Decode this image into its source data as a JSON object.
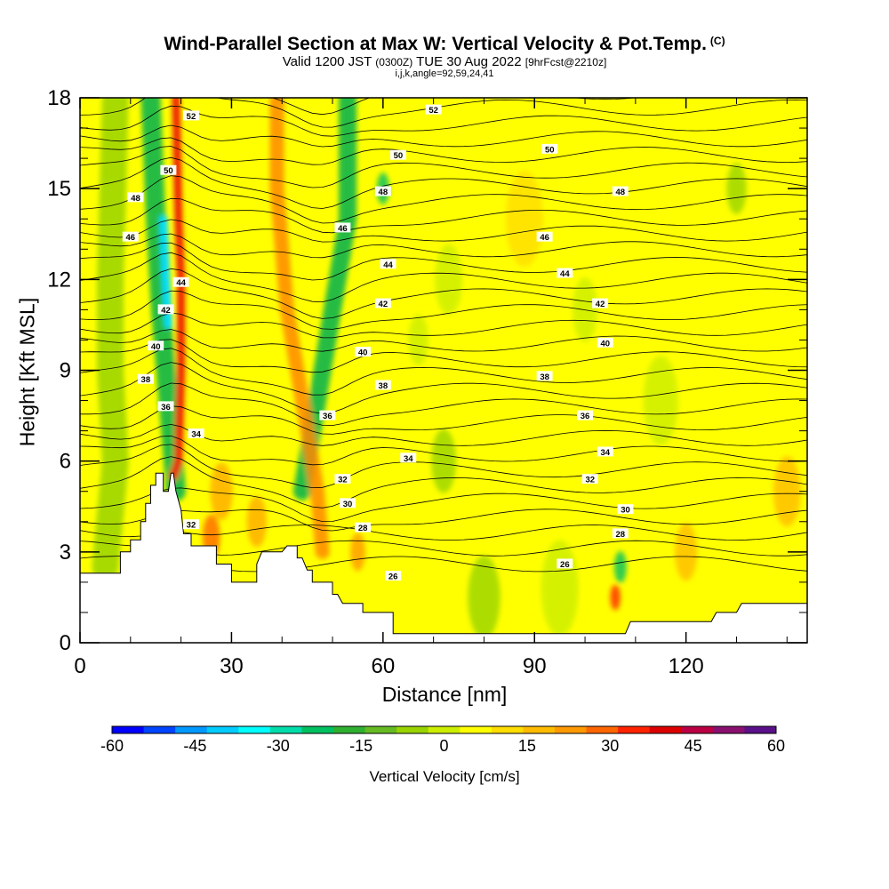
{
  "title": {
    "main": "Wind-Parallel Section at Max W: Vertical Velocity & Pot.Temp.",
    "copyright": "(C)",
    "valid_prefix": "Valid 1200 JST",
    "valid_utc": "(0300Z)",
    "valid_date": "TUE 30 Aug 2022",
    "forecast": "[9hrFcst@2210z]",
    "indices": "i,j,k,angle=92,59,24,41"
  },
  "chart_data": {
    "type": "heatmap",
    "xlabel": "Distance [nm]",
    "ylabel": "Height [Kft MSL]",
    "xlim": [
      0,
      144
    ],
    "ylim": [
      0,
      18
    ],
    "xticks": [
      "0",
      "30",
      "60",
      "90",
      "120"
    ],
    "yticks": [
      "0",
      "3",
      "6",
      "9",
      "12",
      "15",
      "18"
    ],
    "grid": false,
    "colorbar": {
      "label": "Vertical Velocity [cm/s]",
      "ticks": [
        "-60",
        "-45",
        "-30",
        "-15",
        "0",
        "15",
        "30",
        "45",
        "60"
      ],
      "range": [
        -60,
        60
      ],
      "colors": [
        "#0000ff",
        "#0044ff",
        "#0099ff",
        "#00ccff",
        "#00ffff",
        "#00ddaa",
        "#00c060",
        "#30b030",
        "#66bb22",
        "#99d400",
        "#ccee00",
        "#ffff00",
        "#ffdd00",
        "#ffbb00",
        "#ff9900",
        "#ff6600",
        "#ff2200",
        "#dd0000",
        "#bb0044",
        "#8a1070",
        "#5a1088"
      ]
    },
    "terrain_kft": [
      [
        0,
        2.3
      ],
      [
        8,
        2.3
      ],
      [
        8,
        3.0
      ],
      [
        10,
        3.0
      ],
      [
        10,
        3.4
      ],
      [
        12,
        3.4
      ],
      [
        12,
        4.0
      ],
      [
        13,
        4.0
      ],
      [
        13,
        4.6
      ],
      [
        14,
        4.6
      ],
      [
        14,
        5.2
      ],
      [
        15,
        5.2
      ],
      [
        15,
        5.6
      ],
      [
        16.5,
        5.6
      ],
      [
        16.5,
        5.0
      ],
      [
        17.5,
        5.0
      ],
      [
        18,
        5.6
      ],
      [
        18.5,
        5.6
      ],
      [
        19,
        5.0
      ],
      [
        20,
        4.4
      ],
      [
        20.5,
        3.6
      ],
      [
        22,
        3.6
      ],
      [
        22,
        3.2
      ],
      [
        27,
        3.2
      ],
      [
        27,
        2.6
      ],
      [
        30,
        2.6
      ],
      [
        30,
        2.0
      ],
      [
        35,
        2.0
      ],
      [
        35,
        2.6
      ],
      [
        36,
        3.0
      ],
      [
        40,
        3.0
      ],
      [
        41,
        3.2
      ],
      [
        43,
        3.2
      ],
      [
        43,
        2.8
      ],
      [
        44,
        2.8
      ],
      [
        45,
        2.4
      ],
      [
        46,
        2.4
      ],
      [
        46,
        2.0
      ],
      [
        50,
        2.0
      ],
      [
        50,
        1.6
      ],
      [
        51,
        1.6
      ],
      [
        52,
        1.3
      ],
      [
        56,
        1.3
      ],
      [
        56,
        1.0
      ],
      [
        62,
        1.0
      ],
      [
        62,
        0.3
      ],
      [
        108,
        0.3
      ],
      [
        109,
        0.7
      ],
      [
        125,
        0.7
      ],
      [
        126,
        1.0
      ],
      [
        130,
        1.0
      ],
      [
        131,
        1.3
      ],
      [
        144,
        1.3
      ]
    ],
    "contour_labels": [
      {
        "text": "26",
        "x": 62,
        "y": 2.2
      },
      {
        "text": "26",
        "x": 96,
        "y": 2.6
      },
      {
        "text": "28",
        "x": 56,
        "y": 3.8
      },
      {
        "text": "28",
        "x": 107,
        "y": 3.6
      },
      {
        "text": "30",
        "x": 53,
        "y": 4.6
      },
      {
        "text": "30",
        "x": 108,
        "y": 4.4
      },
      {
        "text": "32",
        "x": 22,
        "y": 3.9
      },
      {
        "text": "32",
        "x": 52,
        "y": 5.4
      },
      {
        "text": "32",
        "x": 101,
        "y": 5.4
      },
      {
        "text": "34",
        "x": 23,
        "y": 6.9
      },
      {
        "text": "34",
        "x": 65,
        "y": 6.1
      },
      {
        "text": "34",
        "x": 104,
        "y": 6.3
      },
      {
        "text": "36",
        "x": 17,
        "y": 7.8
      },
      {
        "text": "36",
        "x": 49,
        "y": 7.5
      },
      {
        "text": "36",
        "x": 100,
        "y": 7.5
      },
      {
        "text": "38",
        "x": 13,
        "y": 8.7
      },
      {
        "text": "38",
        "x": 60,
        "y": 8.5
      },
      {
        "text": "38",
        "x": 92,
        "y": 8.8
      },
      {
        "text": "40",
        "x": 15,
        "y": 9.8
      },
      {
        "text": "40",
        "x": 56,
        "y": 9.6
      },
      {
        "text": "40",
        "x": 104,
        "y": 9.9
      },
      {
        "text": "42",
        "x": 17,
        "y": 11.0
      },
      {
        "text": "42",
        "x": 60,
        "y": 11.2
      },
      {
        "text": "42",
        "x": 103,
        "y": 11.2
      },
      {
        "text": "44",
        "x": 20,
        "y": 11.9
      },
      {
        "text": "44",
        "x": 61,
        "y": 12.5
      },
      {
        "text": "44",
        "x": 96,
        "y": 12.2
      },
      {
        "text": "46",
        "x": 10,
        "y": 13.4
      },
      {
        "text": "46",
        "x": 52,
        "y": 13.7
      },
      {
        "text": "46",
        "x": 92,
        "y": 13.4
      },
      {
        "text": "48",
        "x": 11,
        "y": 14.7
      },
      {
        "text": "48",
        "x": 60,
        "y": 14.9
      },
      {
        "text": "48",
        "x": 107,
        "y": 14.9
      },
      {
        "text": "50",
        "x": 17.5,
        "y": 15.6
      },
      {
        "text": "50",
        "x": 63,
        "y": 16.1
      },
      {
        "text": "50",
        "x": 93,
        "y": 16.3
      },
      {
        "text": "52",
        "x": 22,
        "y": 17.4
      },
      {
        "text": "52",
        "x": 70,
        "y": 17.6
      }
    ]
  }
}
